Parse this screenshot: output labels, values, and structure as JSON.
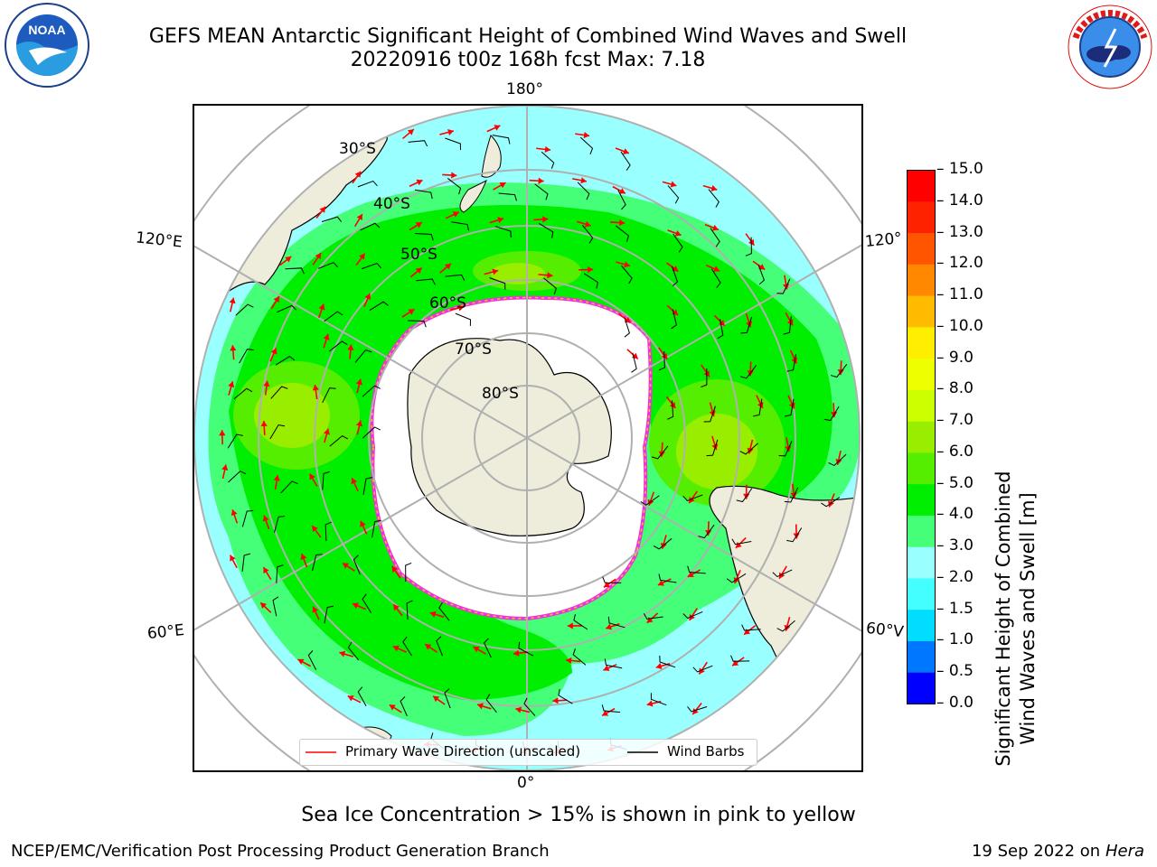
{
  "title": {
    "line1": "GEFS MEAN Antarctic Significant Height of Combined Wind Waves and Swell",
    "line2": "20220916 t00z 168h fcst   Max: 7.18"
  },
  "logos": {
    "noaa": {
      "text": "NOAA",
      "ring_text": "NATIONAL OCEANIC AND ATMOSPHERIC ADMINISTRATION · U.S. DEPARTMENT OF COMMERCE"
    },
    "nws": {
      "ring_text": "NATIONAL WEATHER SERVICE"
    }
  },
  "map": {
    "longitude_labels": {
      "top": "180°",
      "upper_left": "120°E",
      "upper_right": "120°",
      "lower_left": "60°E",
      "lower_right": "60°V",
      "bottom": "0°"
    },
    "latitude_labels": [
      "30°S",
      "40°S",
      "50°S",
      "60°S",
      "70°S",
      "80°S"
    ],
    "colors": {
      "land": "#eeecda",
      "ice_edge": "#ee33dd",
      "grid": "#b0b0b0"
    }
  },
  "colorbar": {
    "label_line1": "Significant Height of Combined",
    "label_line2": "Wind Waves and Swell [m]",
    "ticks": [
      "0.0",
      "0.5",
      "1.0",
      "1.5",
      "2.0",
      "3.0",
      "4.0",
      "5.0",
      "6.0",
      "7.0",
      "8.0",
      "9.0",
      "10.0",
      "11.0",
      "12.0",
      "13.0",
      "14.0",
      "15.0"
    ],
    "colors": [
      "#0000ff",
      "#0077ff",
      "#00ddff",
      "#44ffff",
      "#99ffff",
      "#44ff77",
      "#00ee00",
      "#55ee00",
      "#99ee00",
      "#ccff00",
      "#eeff00",
      "#ffee00",
      "#ffbb00",
      "#ff8800",
      "#ff5500",
      "#ff2200",
      "#ff0000"
    ]
  },
  "legend": {
    "wave_label": "Primary Wave Direction (unscaled)",
    "wind_label": "Wind Barbs",
    "wave_color": "#ff0000",
    "wind_color": "#000000"
  },
  "note": "Sea Ice Concentration > 15% is shown in pink to yellow",
  "footer": {
    "left": "NCEP/EMC/Verification Post Processing Product Generation Branch",
    "date": "19 Sep 2022 on",
    "machine": "Hera"
  }
}
